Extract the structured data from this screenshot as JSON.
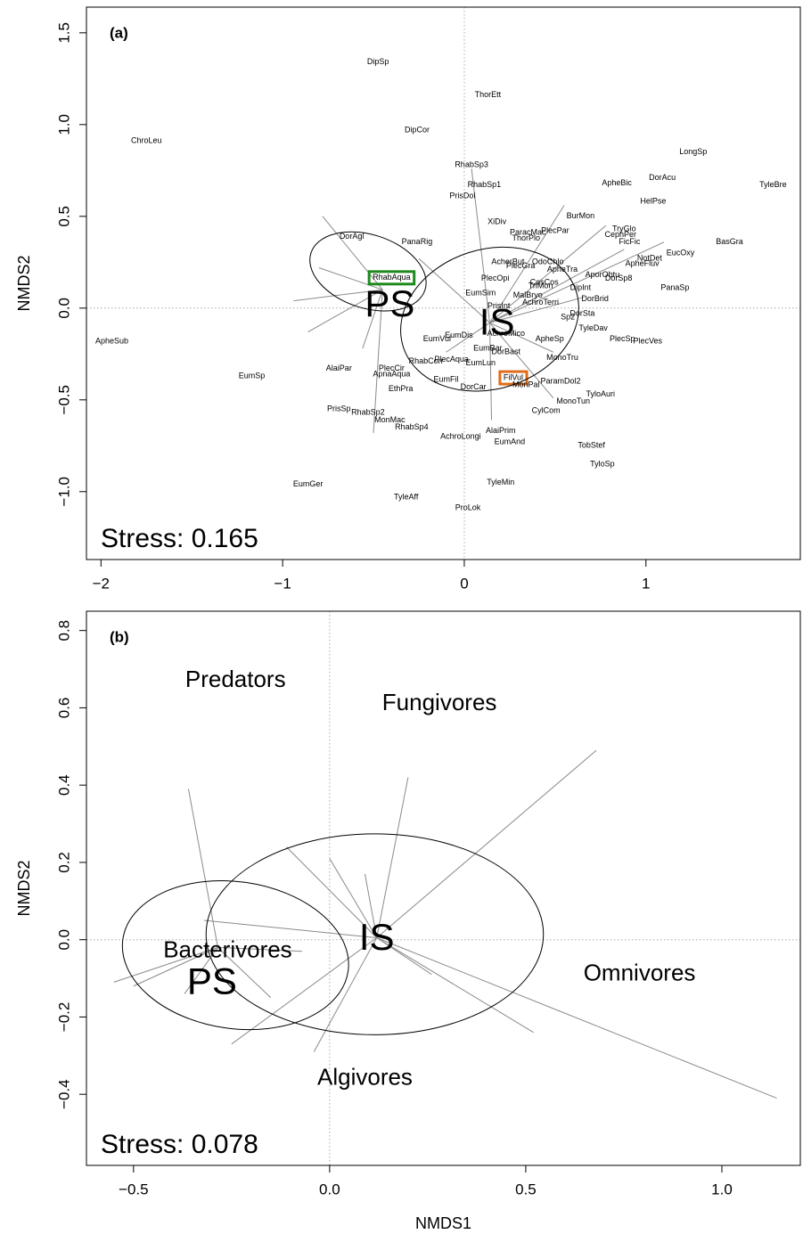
{
  "chart_data": [
    {
      "type": "ordination",
      "panel": "(a)",
      "ylabel": "NMDS2",
      "stress": "Stress: 0.165",
      "xlim": [
        -2.08,
        1.85
      ],
      "ylim": [
        -1.37,
        1.64
      ],
      "xticks": [
        {
          "value": -2,
          "label": "−2"
        },
        {
          "value": -1,
          "label": "−1"
        },
        0,
        1
      ],
      "yticks": [
        {
          "value": -1.0,
          "label": "−1.0"
        },
        {
          "value": -0.5,
          "label": "−0.5"
        },
        {
          "value": 0,
          "label": "0.0"
        },
        0.5,
        {
          "value": 1.0,
          "label": "1.0"
        },
        1.5
      ],
      "labels": [
        {
          "text": "DipSp",
          "x": -0.475,
          "y": 1.34
        },
        {
          "text": "ThorEtt",
          "x": 0.13,
          "y": 1.16
        },
        {
          "text": "DipCor",
          "x": -0.26,
          "y": 0.97
        },
        {
          "text": "ChroLeu",
          "x": -1.75,
          "y": 0.91
        },
        {
          "text": "LongSp",
          "x": 1.26,
          "y": 0.85
        },
        {
          "text": "RhabSp3",
          "x": 0.04,
          "y": 0.78
        },
        {
          "text": "DorAcu",
          "x": 1.09,
          "y": 0.71
        },
        {
          "text": "ApheBic",
          "x": 0.84,
          "y": 0.68
        },
        {
          "text": "TyleBre",
          "x": 1.7,
          "y": 0.67
        },
        {
          "text": "RhabSp1",
          "x": 0.11,
          "y": 0.67
        },
        {
          "text": "PrisDol",
          "x": -0.01,
          "y": 0.61
        },
        {
          "text": "HelPse",
          "x": 1.04,
          "y": 0.58
        },
        {
          "text": "BurMon",
          "x": 0.64,
          "y": 0.5
        },
        {
          "text": "XiDiv",
          "x": 0.18,
          "y": 0.47
        },
        {
          "text": "PlecPar",
          "x": 0.5,
          "y": 0.42
        },
        {
          "text": "TryGlo",
          "x": 0.88,
          "y": 0.43
        },
        {
          "text": "CephPer",
          "x": 0.86,
          "y": 0.4
        },
        {
          "text": "ParacMac",
          "x": 0.35,
          "y": 0.41
        },
        {
          "text": "ThorPlo",
          "x": 0.34,
          "y": 0.38
        },
        {
          "text": "DorAgl",
          "x": -0.62,
          "y": 0.39
        },
        {
          "text": "PanaRig",
          "x": -0.26,
          "y": 0.36
        },
        {
          "text": "FicFic",
          "x": 0.91,
          "y": 0.36
        },
        {
          "text": "BasGra",
          "x": 1.46,
          "y": 0.36
        },
        {
          "text": "NotDet",
          "x": 1.02,
          "y": 0.27
        },
        {
          "text": "EucOxy",
          "x": 1.19,
          "y": 0.3
        },
        {
          "text": "ApheFluv",
          "x": 0.98,
          "y": 0.24
        },
        {
          "text": "AcherBut",
          "x": 0.24,
          "y": 0.25
        },
        {
          "text": "OdoChlo",
          "x": 0.46,
          "y": 0.25
        },
        {
          "text": "PlecGra",
          "x": 0.31,
          "y": 0.23
        },
        {
          "text": "ApheTra",
          "x": 0.54,
          "y": 0.21
        },
        {
          "text": "AporObtu",
          "x": 0.76,
          "y": 0.18
        },
        {
          "text": "DorSp8",
          "x": 0.85,
          "y": 0.16
        },
        {
          "text": "RhabAqua",
          "x": -0.4,
          "y": 0.165,
          "box": "#1e8a1e"
        },
        {
          "text": "PlecOpi",
          "x": 0.17,
          "y": 0.16
        },
        {
          "text": "CosCos",
          "x": 0.44,
          "y": 0.14
        },
        {
          "text": "PanaSp",
          "x": 1.16,
          "y": 0.11
        },
        {
          "text": "DipInt",
          "x": 0.64,
          "y": 0.11
        },
        {
          "text": "EumSim",
          "x": 0.09,
          "y": 0.08
        },
        {
          "text": "MalBryo",
          "x": 0.35,
          "y": 0.07
        },
        {
          "text": "TriMon",
          "x": 0.42,
          "y": 0.12
        },
        {
          "text": "AchroTerri",
          "x": 0.42,
          "y": 0.03
        },
        {
          "text": "DorBrid",
          "x": 0.72,
          "y": 0.05
        },
        {
          "text": "PrisInt",
          "x": 0.19,
          "y": 0.01
        },
        {
          "text": "DorSta",
          "x": 0.65,
          "y": -0.03
        },
        {
          "text": "Sp2",
          "x": 0.57,
          "y": -0.05
        },
        {
          "text": "TyleDav",
          "x": 0.71,
          "y": -0.11
        },
        {
          "text": "ApheSub",
          "x": -1.94,
          "y": -0.18
        },
        {
          "text": "EumVul",
          "x": -0.15,
          "y": -0.17
        },
        {
          "text": "EumDis",
          "x": -0.03,
          "y": -0.15
        },
        {
          "text": "AchroMico",
          "x": 0.23,
          "y": -0.14
        },
        {
          "text": "PlecSp",
          "x": 0.87,
          "y": -0.17
        },
        {
          "text": "PlecVes",
          "x": 1.01,
          "y": -0.18
        },
        {
          "text": "ApheSp",
          "x": 0.47,
          "y": -0.17
        },
        {
          "text": "EumBar",
          "x": 0.13,
          "y": -0.22
        },
        {
          "text": "DorBast",
          "x": 0.23,
          "y": -0.24
        },
        {
          "text": "RhabCorr",
          "x": -0.21,
          "y": -0.29
        },
        {
          "text": "PlecAqua",
          "x": -0.07,
          "y": -0.28
        },
        {
          "text": "EumLun",
          "x": 0.09,
          "y": -0.3
        },
        {
          "text": "MonoTru",
          "x": 0.54,
          "y": -0.27
        },
        {
          "text": "AlaiPar",
          "x": -0.69,
          "y": -0.33
        },
        {
          "text": "PlecCir",
          "x": -0.4,
          "y": -0.33
        },
        {
          "text": "EumSp",
          "x": -1.17,
          "y": -0.37
        },
        {
          "text": "ApnaAqua",
          "x": -0.4,
          "y": -0.36
        },
        {
          "text": "FilVul",
          "x": 0.27,
          "y": -0.38,
          "box": "#e06c1a"
        },
        {
          "text": "EumFil",
          "x": -0.1,
          "y": -0.39
        },
        {
          "text": "ParamDol2",
          "x": 0.53,
          "y": -0.4
        },
        {
          "text": "MonPal",
          "x": 0.34,
          "y": -0.42
        },
        {
          "text": "DorCar",
          "x": 0.05,
          "y": -0.43
        },
        {
          "text": "EthPra",
          "x": -0.35,
          "y": -0.44
        },
        {
          "text": "TyloAuri",
          "x": 0.75,
          "y": -0.47
        },
        {
          "text": "MonoTun",
          "x": 0.6,
          "y": -0.51
        },
        {
          "text": "CylCom",
          "x": 0.45,
          "y": -0.56
        },
        {
          "text": "PrisSp",
          "x": -0.69,
          "y": -0.55
        },
        {
          "text": "RhabSp2",
          "x": -0.53,
          "y": -0.57
        },
        {
          "text": "MonMac",
          "x": -0.41,
          "y": -0.61
        },
        {
          "text": "RhabSp4",
          "x": -0.29,
          "y": -0.65
        },
        {
          "text": "AlaiPrim",
          "x": 0.2,
          "y": -0.67
        },
        {
          "text": "AchroLongi",
          "x": -0.02,
          "y": -0.7
        },
        {
          "text": "EumAnd",
          "x": 0.25,
          "y": -0.73
        },
        {
          "text": "TobStef",
          "x": 0.7,
          "y": -0.75
        },
        {
          "text": "TyloSp",
          "x": 0.76,
          "y": -0.85
        },
        {
          "text": "TyleMin",
          "x": 0.2,
          "y": -0.95
        },
        {
          "text": "EumGer",
          "x": -0.86,
          "y": -0.96
        },
        {
          "text": "TyleAff",
          "x": -0.32,
          "y": -1.03
        },
        {
          "text": "ProLok",
          "x": 0.02,
          "y": -1.09
        }
      ],
      "groups": [
        {
          "name": "PS",
          "color": "#1e8a1e",
          "label_x": -0.41,
          "label_y": 0.01,
          "centroid": [
            -0.45,
            0.1
          ],
          "ends": [
            [
              -0.78,
              0.5
            ],
            [
              -0.94,
              0.04
            ],
            [
              -0.86,
              -0.13
            ],
            [
              -0.5,
              -0.68
            ],
            [
              -0.56,
              -0.22
            ],
            [
              -0.8,
              0.22
            ]
          ],
          "ellipse": {
            "cx": -0.53,
            "cy": 0.2,
            "rx": 0.33,
            "ry": 0.2,
            "angle": -18
          }
        },
        {
          "name": "IS",
          "color": "#e06c1a",
          "label_x": 0.18,
          "label_y": -0.09,
          "centroid": [
            0.14,
            -0.08
          ],
          "ends": [
            [
              0.04,
              0.76
            ],
            [
              0.55,
              0.56
            ],
            [
              0.78,
              0.45
            ],
            [
              0.88,
              0.32
            ],
            [
              1.1,
              0.36
            ],
            [
              0.66,
              0.06
            ],
            [
              0.49,
              -0.24
            ],
            [
              0.49,
              -0.49
            ],
            [
              0.15,
              -0.61
            ],
            [
              -0.1,
              -0.24
            ],
            [
              -0.25,
              0.27
            ]
          ],
          "ellipse": {
            "cx": 0.14,
            "cy": -0.06,
            "rx": 0.5,
            "ry": 0.38,
            "angle": 18
          }
        }
      ]
    },
    {
      "type": "ordination",
      "panel": "(b)",
      "ylabel": "NMDS2",
      "xlabel": "NMDS1",
      "stress": "Stress: 0.078",
      "xlim": [
        -0.62,
        1.2
      ],
      "ylim": [
        -0.584,
        0.85
      ],
      "xticks": [
        {
          "value": -0.5,
          "label": "−0.5"
        },
        {
          "value": 0,
          "label": "0.0"
        },
        0.5,
        {
          "value": 1.0,
          "label": "1.0"
        }
      ],
      "yticks": [
        {
          "value": -0.4,
          "label": "−0.4"
        },
        {
          "value": -0.2,
          "label": "−0.2"
        },
        {
          "value": 0,
          "label": "0.0"
        },
        0.2,
        0.4,
        0.6,
        0.8
      ],
      "labels": [
        {
          "text": "Predators",
          "x": -0.24,
          "y": 0.67,
          "size": 26
        },
        {
          "text": "Fungivores",
          "x": 0.28,
          "y": 0.61,
          "size": 26
        },
        {
          "text": "Omnivores",
          "x": 0.79,
          "y": -0.09,
          "size": 26
        },
        {
          "text": "Algivores",
          "x": 0.09,
          "y": -0.36,
          "size": 26
        },
        {
          "text": "Bacterivores",
          "x": -0.26,
          "y": -0.03,
          "size": 26,
          "color": "#707070"
        }
      ],
      "groups": [
        {
          "name": "PS",
          "color": "#1e8a1e",
          "label_x": -0.3,
          "label_y": -0.115,
          "centroid": [
            -0.285,
            -0.02
          ],
          "ends": [
            [
              -0.36,
              0.39
            ],
            [
              -0.55,
              -0.11
            ],
            [
              -0.5,
              -0.12
            ],
            [
              -0.15,
              -0.15
            ],
            [
              -0.37,
              -0.14
            ],
            [
              -0.07,
              -0.03
            ]
          ],
          "ellipse": {
            "cx": -0.24,
            "cy": -0.04,
            "rx": 0.29,
            "ry": 0.19,
            "angle": -8
          }
        },
        {
          "name": "IS",
          "color": "#e06c1a",
          "label_x": 0.12,
          "label_y": 0.0,
          "centroid": [
            0.12,
            0.005
          ],
          "ends": [
            [
              0.68,
              0.49
            ],
            [
              0.2,
              0.42
            ],
            [
              0.0,
              0.21
            ],
            [
              -0.11,
              0.24
            ],
            [
              0.52,
              -0.24
            ],
            [
              1.14,
              -0.41
            ],
            [
              -0.04,
              -0.29
            ],
            [
              -0.25,
              -0.27
            ],
            [
              0.26,
              -0.09
            ],
            [
              -0.32,
              0.05
            ],
            [
              0.09,
              0.17
            ]
          ],
          "ellipse": {
            "cx": 0.115,
            "cy": 0.014,
            "rx": 0.43,
            "ry": 0.26,
            "angle": 0
          }
        }
      ]
    }
  ]
}
